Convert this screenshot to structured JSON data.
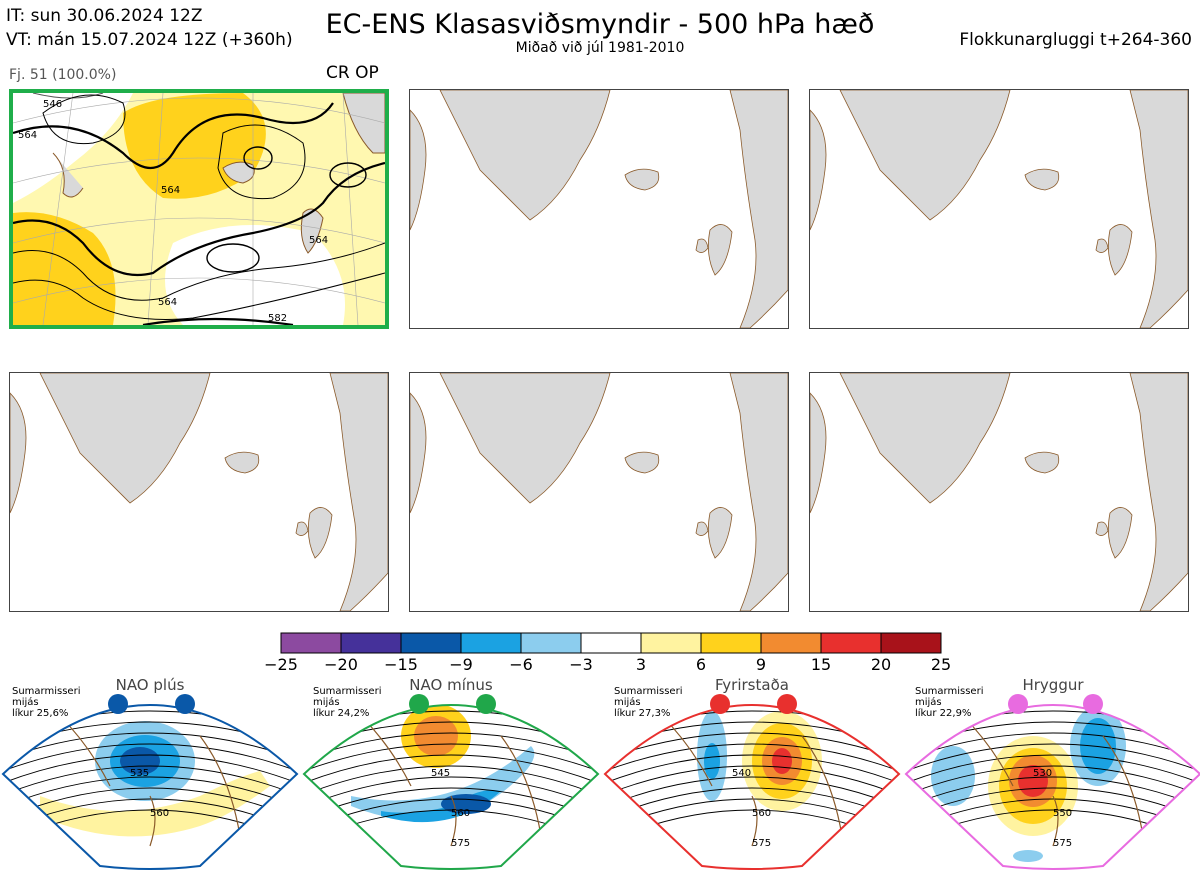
{
  "header": {
    "it_line": "IT: sun 30.06.2024 12Z",
    "vt_line": "VT: mán 15.07.2024 12Z  (+360h)",
    "title": "EC-ENS Klasasviðsmyndir - 500 hPa hæð",
    "subtitle": "Miðað við júl 1981-2010",
    "window": "Flokkunargluggi t+264-360"
  },
  "main_panel": {
    "member_label": "Fj. 51 (100.0%)",
    "regime_code": "CR OP",
    "contour_labels": [
      "564",
      "564",
      "564",
      "564",
      "582",
      "546"
    ]
  },
  "colorbar": {
    "ticks": [
      "−25",
      "−20",
      "−15",
      "−9",
      "−6",
      "−3",
      "3",
      "6",
      "9",
      "15",
      "20",
      "25"
    ],
    "colors": [
      "#8c4aa0",
      "#45319a",
      "#0a58a8",
      "#1ba2e2",
      "#8ccdee",
      "#ffffff",
      "#fff3a0",
      "#ffd21c",
      "#f28b30",
      "#e8302e",
      "#a8121a"
    ]
  },
  "regimes": [
    {
      "name": "NAO plús",
      "note": "Sumarmisseri\nmijás\nlíkur 25,6%",
      "color": "#0a58a8",
      "labels": [
        "535",
        "560"
      ]
    },
    {
      "name": "NAO mínus",
      "note": "Sumarmisseri\nmijás\nlíkur 24,2%",
      "color": "#20a74a",
      "labels": [
        "545",
        "560",
        "575"
      ]
    },
    {
      "name": "Fyrirstaða",
      "note": "Sumarmisseri\nmijás\nlíkur 27,3%",
      "color": "#e8302e",
      "labels": [
        "540",
        "560",
        "575"
      ]
    },
    {
      "name": "Hryggur",
      "note": "Sumarmisseri\nmijás\nlíkur 22,9%",
      "color": "#e86be0",
      "labels": [
        "530",
        "550",
        "575"
      ]
    }
  ]
}
